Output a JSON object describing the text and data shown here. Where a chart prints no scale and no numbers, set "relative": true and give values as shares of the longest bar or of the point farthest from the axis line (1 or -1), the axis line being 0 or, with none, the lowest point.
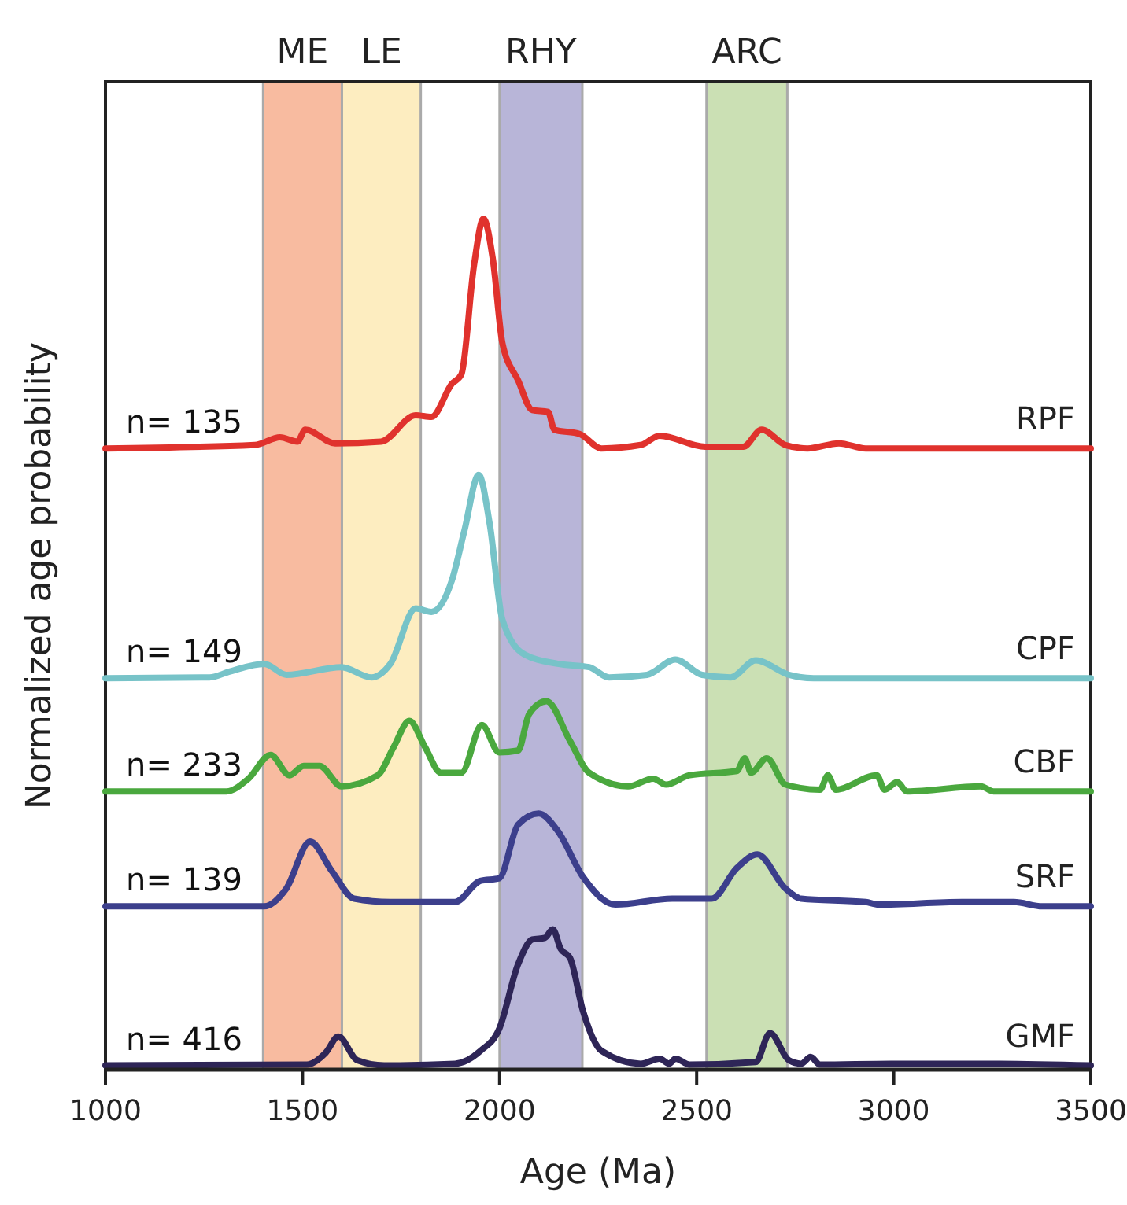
{
  "chart_data": {
    "type": "line",
    "relative": true,
    "xlabel": "Age (Ma)",
    "ylabel": "Normalized age probability",
    "xlim": [
      1000,
      3500
    ],
    "xticks": [
      1000,
      1500,
      2000,
      2500,
      3000,
      3500
    ],
    "grid": false,
    "line_style": "solid",
    "bands": [
      {
        "axis": "x",
        "from": 1400,
        "to": 1600,
        "label": "ME",
        "color": "#f8bba0"
      },
      {
        "axis": "x",
        "from": 1600,
        "to": 1800,
        "label": "LE",
        "color": "#fdedc0"
      },
      {
        "axis": "x",
        "from": 2000,
        "to": 2210,
        "label": "RHY",
        "color": "#b8b5d8"
      },
      {
        "axis": "x",
        "from": 2525,
        "to": 2730,
        "label": "ARC",
        "color": "#cbe0b4"
      }
    ],
    "annotations": [
      "n= 135",
      "n= 149",
      "n= 233",
      "n= 139",
      "n= 416"
    ],
    "series": [
      {
        "name": "RPF",
        "color": "#e0322d",
        "x": [
          1000,
          1379,
          1443,
          1487,
          1507,
          1583,
          1699,
          1787,
          1827,
          1879,
          1903,
          1935,
          1959,
          1983,
          2007,
          2047,
          2083,
          2123,
          2139,
          2203,
          2259,
          2358,
          2406,
          2522,
          2618,
          2665,
          2725,
          2781,
          2861,
          2929,
          3500
        ],
        "values": [
          0.73,
          0.734,
          0.743,
          0.738,
          0.752,
          0.736,
          0.738,
          0.769,
          0.767,
          0.806,
          0.817,
          0.945,
          1,
          0.952,
          0.854,
          0.81,
          0.775,
          0.773,
          0.752,
          0.747,
          0.73,
          0.734,
          0.745,
          0.732,
          0.732,
          0.752,
          0.734,
          0.73,
          0.736,
          0.73,
          0.73
        ]
      },
      {
        "name": "CPF",
        "color": "#77c3c8",
        "x": [
          1000,
          1264,
          1316,
          1403,
          1459,
          1599,
          1675,
          1723,
          1787,
          1827,
          1879,
          1911,
          1947,
          1975,
          2007,
          2063,
          2147,
          2227,
          2278,
          2374,
          2446,
          2514,
          2586,
          2650,
          2734,
          2797,
          3500
        ],
        "values": [
          0.46,
          0.461,
          0.468,
          0.477,
          0.464,
          0.473,
          0.461,
          0.477,
          0.542,
          0.538,
          0.575,
          0.634,
          0.699,
          0.641,
          0.529,
          0.488,
          0.477,
          0.473,
          0.461,
          0.464,
          0.482,
          0.464,
          0.461,
          0.481,
          0.464,
          0.46,
          0.46
        ]
      },
      {
        "name": "CBF",
        "color": "#4aa83e",
        "x": [
          1000,
          1307,
          1363,
          1419,
          1467,
          1503,
          1543,
          1599,
          1691,
          1731,
          1771,
          1811,
          1851,
          1903,
          1955,
          1999,
          2047,
          2075,
          2119,
          2179,
          2227,
          2326,
          2390,
          2422,
          2482,
          2602,
          2622,
          2638,
          2678,
          2725,
          2813,
          2833,
          2853,
          2957,
          2977,
          3009,
          3033,
          3221,
          3253,
          3500
        ],
        "values": [
          0.327,
          0.327,
          0.342,
          0.37,
          0.346,
          0.357,
          0.357,
          0.333,
          0.346,
          0.379,
          0.41,
          0.379,
          0.349,
          0.349,
          0.405,
          0.373,
          0.375,
          0.418,
          0.433,
          0.386,
          0.349,
          0.333,
          0.342,
          0.335,
          0.346,
          0.351,
          0.366,
          0.349,
          0.366,
          0.335,
          0.329,
          0.346,
          0.329,
          0.346,
          0.329,
          0.338,
          0.327,
          0.333,
          0.327,
          0.327
        ]
      },
      {
        "name": "SRF",
        "color": "#3c3f8c",
        "x": [
          1000,
          1403,
          1459,
          1519,
          1575,
          1631,
          1723,
          1887,
          1951,
          1999,
          2047,
          2099,
          2147,
          2211,
          2294,
          2438,
          2538,
          2602,
          2654,
          2725,
          2765,
          2929,
          2961,
          3173,
          3305,
          3377,
          3500
        ],
        "values": [
          0.192,
          0.192,
          0.213,
          0.268,
          0.233,
          0.201,
          0.197,
          0.197,
          0.222,
          0.225,
          0.288,
          0.301,
          0.281,
          0.227,
          0.194,
          0.201,
          0.201,
          0.237,
          0.253,
          0.213,
          0.201,
          0.197,
          0.194,
          0.197,
          0.197,
          0.192,
          0.192
        ]
      },
      {
        "name": "GMF",
        "color": "#2e2557",
        "x": [
          1000,
          1511,
          1559,
          1591,
          1639,
          1707,
          1887,
          1951,
          1999,
          2047,
          2083,
          2115,
          2135,
          2155,
          2179,
          2211,
          2259,
          2358,
          2406,
          2430,
          2446,
          2482,
          2650,
          2686,
          2734,
          2765,
          2789,
          2813,
          2993,
          3253,
          3500
        ],
        "values": [
          0.005,
          0.006,
          0.02,
          0.039,
          0.011,
          0.005,
          0.007,
          0.022,
          0.048,
          0.124,
          0.153,
          0.155,
          0.165,
          0.142,
          0.131,
          0.07,
          0.022,
          0.007,
          0.013,
          0.007,
          0.013,
          0.006,
          0.009,
          0.043,
          0.011,
          0.007,
          0.015,
          0.006,
          0.007,
          0.007,
          0.005
        ]
      }
    ]
  }
}
